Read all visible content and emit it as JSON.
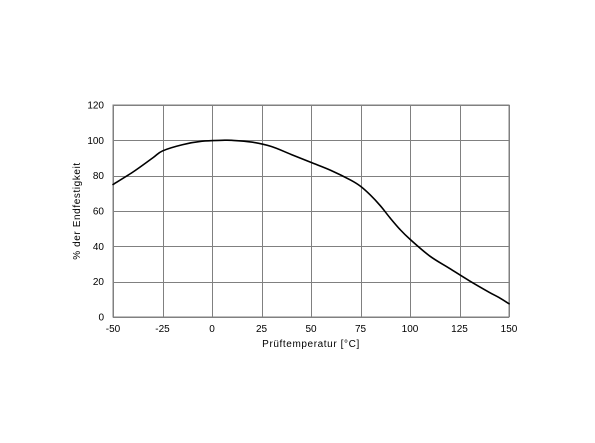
{
  "chart_data": {
    "type": "line",
    "title": "",
    "xlabel": "Prüftemperatur [°C]",
    "ylabel": "% der Endfestigkeit",
    "xlim": [
      -50,
      150
    ],
    "ylim": [
      0,
      120
    ],
    "x_ticks": [
      -50,
      -25,
      0,
      25,
      50,
      75,
      100,
      125,
      150
    ],
    "y_ticks": [
      0,
      20,
      40,
      60,
      80,
      100,
      120
    ],
    "x_tick_labels": [
      "-50",
      "-25",
      "0",
      "25",
      "50",
      "75",
      "100",
      "125",
      "150"
    ],
    "y_tick_labels": [
      "0",
      "20",
      "40",
      "60",
      "80",
      "100",
      "120"
    ],
    "grid": true,
    "legend": "none",
    "line_color": "#000000",
    "grid_color": "#808080",
    "series": [
      {
        "x": [
          -50,
          -40,
          -30,
          -25,
          -15,
          -5,
          5,
          10,
          20,
          30,
          40,
          50,
          60,
          70,
          75,
          80,
          85,
          90,
          95,
          100,
          110,
          120,
          130,
          140,
          145,
          150
        ],
        "y": [
          75,
          82,
          90,
          94,
          97.5,
          99.5,
          100,
          100,
          99,
          96.5,
          92,
          87.5,
          83,
          77.5,
          74,
          69,
          63,
          56,
          49.5,
          44,
          34.5,
          27.5,
          20.5,
          14,
          11,
          7.5
        ]
      }
    ]
  }
}
